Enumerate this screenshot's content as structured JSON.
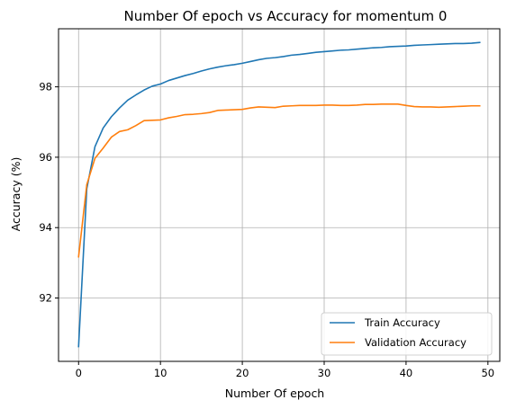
{
  "chart_data": {
    "type": "line",
    "title": "Number Of epoch vs Accuracy for momentum 0",
    "xlabel": "Number Of epoch",
    "ylabel": "Accuracy (%)",
    "xlim": [
      -2.45,
      51.45
    ],
    "ylim": [
      90.2,
      99.65
    ],
    "xticks": [
      0,
      10,
      20,
      30,
      40,
      50
    ],
    "yticks": [
      92,
      94,
      96,
      98
    ],
    "xtick_labels": [
      "0",
      "10",
      "20",
      "30",
      "40",
      "50"
    ],
    "ytick_labels": [
      "92",
      "94",
      "96",
      "98"
    ],
    "grid": true,
    "legend_position": "lower-right",
    "x": [
      0,
      1,
      2,
      3,
      4,
      5,
      6,
      7,
      8,
      9,
      10,
      11,
      12,
      13,
      14,
      15,
      16,
      17,
      18,
      19,
      20,
      21,
      22,
      23,
      24,
      25,
      26,
      27,
      28,
      29,
      30,
      31,
      32,
      33,
      34,
      35,
      36,
      37,
      38,
      39,
      40,
      41,
      42,
      43,
      44,
      45,
      46,
      47,
      48,
      49
    ],
    "series": [
      {
        "name": "Train Accuracy",
        "color": "#1f77b4",
        "values": [
          90.62,
          95.1,
          96.3,
          96.83,
          97.15,
          97.4,
          97.62,
          97.77,
          97.91,
          98.02,
          98.08,
          98.18,
          98.25,
          98.32,
          98.38,
          98.45,
          98.51,
          98.56,
          98.6,
          98.63,
          98.67,
          98.72,
          98.77,
          98.81,
          98.83,
          98.86,
          98.9,
          98.92,
          98.95,
          98.98,
          99.0,
          99.02,
          99.04,
          99.05,
          99.07,
          99.09,
          99.11,
          99.12,
          99.14,
          99.15,
          99.16,
          99.18,
          99.19,
          99.2,
          99.21,
          99.22,
          99.23,
          99.23,
          99.24,
          99.26
        ]
      },
      {
        "name": "Validation Accuracy",
        "color": "#ff7f0e",
        "values": [
          93.17,
          95.22,
          95.97,
          96.26,
          96.57,
          96.73,
          96.78,
          96.9,
          97.04,
          97.05,
          97.06,
          97.12,
          97.16,
          97.21,
          97.22,
          97.24,
          97.27,
          97.33,
          97.34,
          97.35,
          97.36,
          97.4,
          97.43,
          97.42,
          97.41,
          97.45,
          97.46,
          97.47,
          97.47,
          97.47,
          97.48,
          97.48,
          97.47,
          97.47,
          97.48,
          97.5,
          97.5,
          97.51,
          97.51,
          97.51,
          97.47,
          97.44,
          97.43,
          97.43,
          97.42,
          97.43,
          97.44,
          97.45,
          97.46,
          97.46
        ]
      }
    ]
  }
}
